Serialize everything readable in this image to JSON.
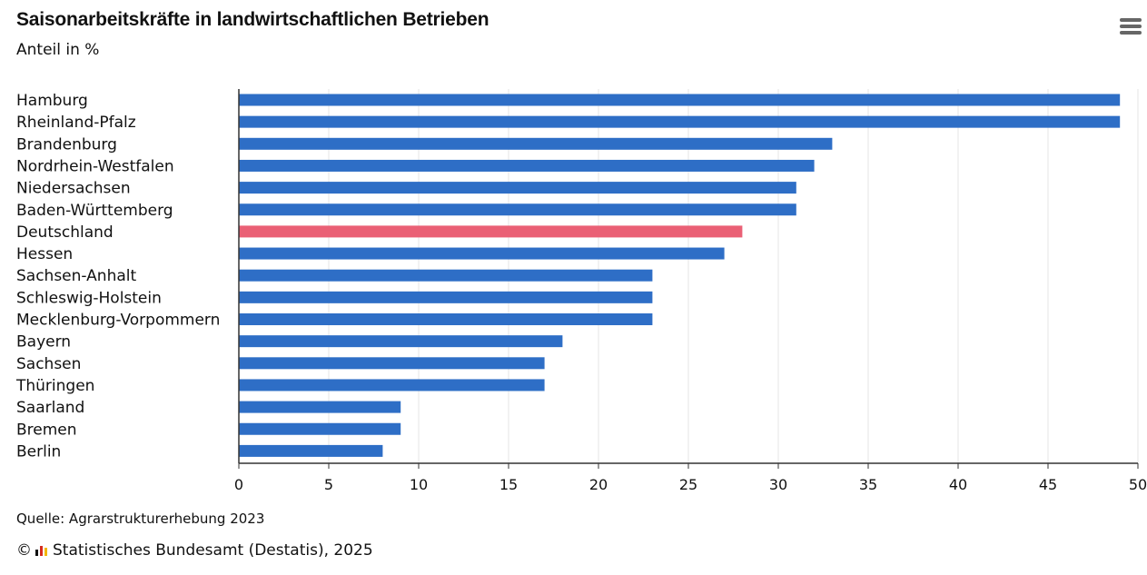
{
  "header": {
    "title": "Saisonarbeitskräfte in landwirtschaftlichen Betrieben",
    "subtitle": "Anteil in %",
    "menu_icon": "hamburger-menu-icon"
  },
  "footer": {
    "source": "Quelle: Agrarstrukturerhebung 2023",
    "copyright_symbol": "©",
    "publisher": "Statistisches Bundesamt (Destatis), 2025",
    "logo_icon": "destatis-logo-icon"
  },
  "colors": {
    "bar": "#2e6ec6",
    "highlight": "#ea6075",
    "grid": "#e6e6e6",
    "axis": "#333333",
    "text": "#111111"
  },
  "chart_data": {
    "type": "bar",
    "orientation": "horizontal",
    "categories": [
      "Hamburg",
      "Rheinland-Pfalz",
      "Brandenburg",
      "Nordrhein-Westfalen",
      "Niedersachsen",
      "Baden-Württemberg",
      "Deutschland",
      "Hessen",
      "Sachsen-Anhalt",
      "Schleswig-Holstein",
      "Mecklenburg-Vorpommern",
      "Bayern",
      "Sachsen",
      "Thüringen",
      "Saarland",
      "Bremen",
      "Berlin"
    ],
    "values": [
      49,
      49,
      33,
      32,
      31,
      31,
      28,
      27,
      23,
      23,
      23,
      18,
      17,
      17,
      9,
      9,
      8
    ],
    "highlight_category": "Deutschland",
    "xlim": [
      0,
      50
    ],
    "xticks": [
      0,
      5,
      10,
      15,
      20,
      25,
      30,
      35,
      40,
      45,
      50
    ],
    "xlabel": "",
    "ylabel": "",
    "grid": true
  }
}
